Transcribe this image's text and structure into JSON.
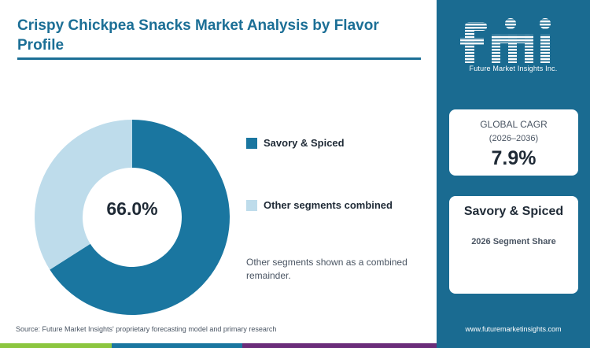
{
  "header": {
    "title": "Crispy Chickpea Snacks Market Analysis by Flavor Profile"
  },
  "chart_data": {
    "type": "pie",
    "categories": [
      "Savory & Spiced",
      "Other segments combined"
    ],
    "values": [
      66.0,
      34.0
    ],
    "colors": [
      "#1a76a0",
      "#bedceb"
    ],
    "center_label": "66.0%",
    "legend_position": "right"
  },
  "legend": {
    "items": [
      {
        "label": "Savory & Spiced",
        "color": "#1a76a0"
      },
      {
        "label": "Other segments combined",
        "color": "#bedceb"
      }
    ]
  },
  "note": "Other segments shown as a combined remainder.",
  "source": "Source: Future Market Insights' proprietary forecasting model and primary research",
  "sidebar": {
    "logo_text": "fmi",
    "logo_subtext": "Future Market Insights Inc.",
    "cagr_card": {
      "label": "GLOBAL CAGR",
      "period": "(2026–2036)",
      "value": "7.9%"
    },
    "segment_card": {
      "title": "Savory & Spiced",
      "subtitle": "2026 Segment Share"
    },
    "website": "www.futuremarketinsights.com",
    "background_color": "#1a6b91"
  },
  "footer_colors": [
    "#8cc63f",
    "#1a76a0",
    "#6b2d7a"
  ]
}
